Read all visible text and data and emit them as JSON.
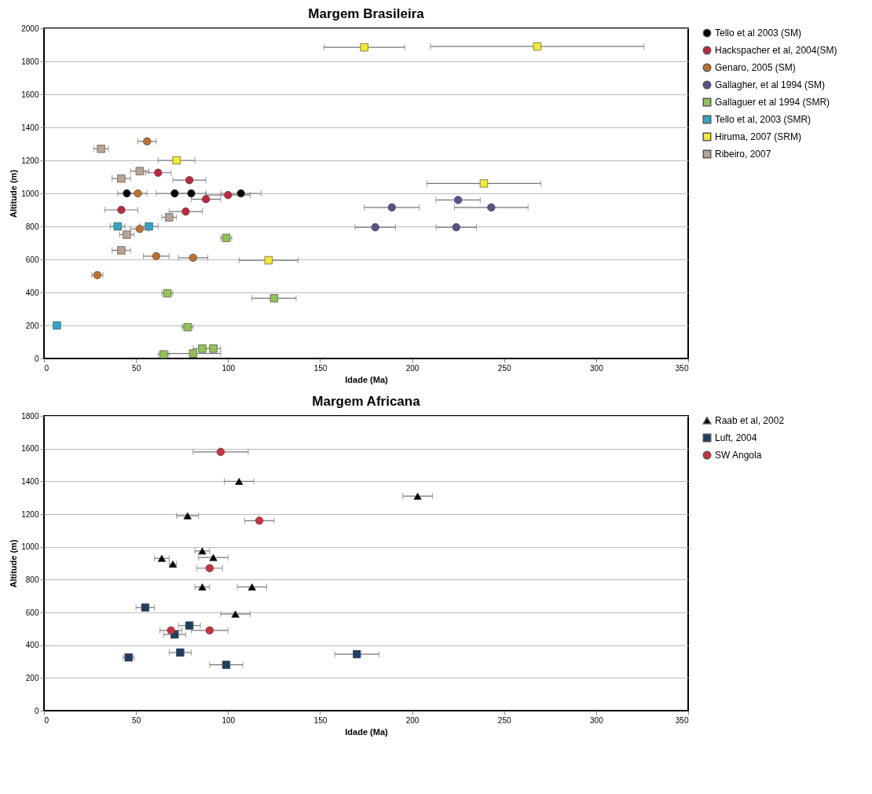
{
  "chart_data": [
    {
      "type": "scatter",
      "title": "Margem Brasileira",
      "xlabel": "Idade (Ma)",
      "ylabel": "Altitude (m)",
      "xlim": [
        0,
        350
      ],
      "xticks": [
        0,
        50,
        100,
        150,
        200,
        250,
        300,
        350
      ],
      "ylim": [
        0,
        2000
      ],
      "yticks": [
        0,
        200,
        400,
        600,
        800,
        1000,
        1200,
        1400,
        1600,
        1800,
        2000
      ],
      "grid": "y",
      "legend": "right",
      "series": [
        {
          "name": "Tello et al 2003 (SM)",
          "color": "#000000",
          "marker": "circle",
          "x": [
            45,
            71,
            80,
            107
          ],
          "values": [
            1000,
            1000,
            1000,
            1000
          ],
          "xerrors": [
            5,
            10,
            8,
            11
          ]
        },
        {
          "name": "Hackspacher et al, 2004(SM)",
          "color": "#c0273d",
          "marker": "circle",
          "x": [
            62,
            79,
            42,
            77,
            88,
            100
          ],
          "values": [
            1125,
            1080,
            900,
            890,
            965,
            990
          ],
          "xerrors": [
            7,
            9,
            9,
            9,
            8,
            12
          ]
        },
        {
          "name": "Genaro, 2005 (SM)",
          "color": "#c0702a",
          "marker": "circle",
          "x": [
            56,
            51,
            52,
            61,
            81,
            29
          ],
          "values": [
            1315,
            1000,
            785,
            620,
            610,
            505
          ],
          "xerrors": [
            5,
            5,
            5,
            7,
            8,
            3
          ]
        },
        {
          "name": "Gallagher, et al 1994 (SM)",
          "color": "#5c4f8a",
          "marker": "circle",
          "x": [
            225,
            189,
            243,
            180,
            224
          ],
          "values": [
            960,
            915,
            915,
            795,
            795
          ],
          "xerrors": [
            12,
            15,
            20,
            11,
            11
          ]
        },
        {
          "name": "Gallaguer et al 1994 (SMR)",
          "color": "#92c154",
          "marker": "square",
          "x": [
            99,
            67,
            125,
            78,
            86,
            92,
            65,
            81
          ],
          "values": [
            730,
            395,
            365,
            190,
            60,
            60,
            25,
            30
          ],
          "xerrors": [
            3,
            3,
            12,
            3,
            5,
            4,
            3,
            15
          ]
        },
        {
          "name": "Tello et al, 2003 (SMR)",
          "color": "#2ea6c9",
          "marker": "square",
          "x": [
            7,
            40,
            57
          ],
          "values": [
            200,
            800,
            800
          ],
          "xerrors": [
            null,
            4,
            5
          ]
        },
        {
          "name": "Hiruma, 2007 (SRM)",
          "color": "#f2ea2b",
          "marker": "square",
          "x": [
            174,
            268,
            239,
            72,
            122
          ],
          "values": [
            1885,
            1890,
            1060,
            1200,
            595
          ],
          "xerrors": [
            22,
            58,
            31,
            10,
            16
          ]
        },
        {
          "name": "Ribeiro, 2007",
          "color": "#b8a394",
          "marker": "square",
          "x": [
            31,
            52,
            42,
            68,
            45,
            42
          ],
          "values": [
            1270,
            1135,
            1090,
            855,
            750,
            655
          ],
          "xerrors": [
            4,
            5,
            5,
            4,
            4,
            5
          ]
        }
      ]
    },
    {
      "type": "scatter",
      "title": "Margem Africana",
      "xlabel": "Idade (Ma)",
      "ylabel": "Altitude (m)",
      "xlim": [
        0,
        350
      ],
      "xticks": [
        0,
        50,
        100,
        150,
        200,
        250,
        300,
        350
      ],
      "ylim": [
        0,
        1800
      ],
      "yticks": [
        0,
        200,
        400,
        600,
        800,
        1000,
        1200,
        1400,
        1600,
        1800
      ],
      "grid": "y",
      "legend": "right",
      "series": [
        {
          "name": "Raab et al, 2002",
          "color": "#000000",
          "marker": "triangle",
          "x": [
            106,
            203,
            78,
            86,
            92,
            64,
            70,
            86,
            113,
            104
          ],
          "values": [
            1400,
            1310,
            1190,
            975,
            935,
            930,
            895,
            755,
            755,
            590
          ],
          "xerrors": [
            8,
            8,
            6,
            4,
            8,
            4,
            2,
            4,
            8,
            8
          ]
        },
        {
          "name": "Luft, 2004",
          "color": "#1f3e66",
          "marker": "square",
          "x": [
            55,
            79,
            71,
            74,
            46,
            99,
            170
          ],
          "values": [
            630,
            520,
            465,
            355,
            325,
            280,
            345
          ],
          "xerrors": [
            5,
            6,
            6,
            6,
            3,
            9,
            12
          ]
        },
        {
          "name": "SW Angola",
          "color": "#d0303a",
          "marker": "circle",
          "x": [
            96,
            117,
            90,
            69,
            90
          ],
          "values": [
            1580,
            1160,
            870,
            490,
            490
          ],
          "xerrors": [
            15,
            8,
            7,
            6,
            10
          ]
        }
      ]
    }
  ]
}
